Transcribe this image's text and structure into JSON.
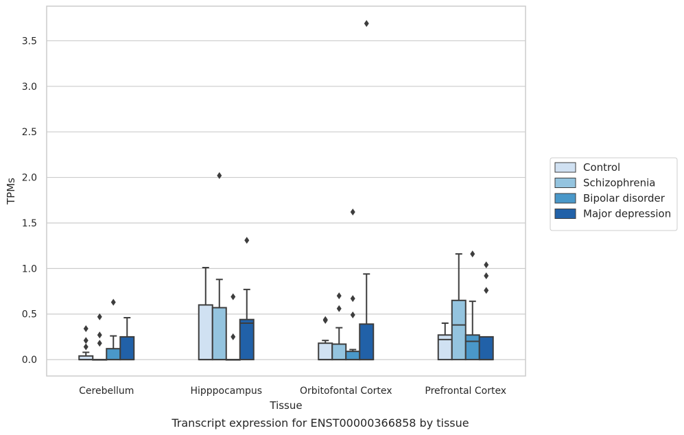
{
  "caption": "Transcript expression for ENST00000366858 by tissue",
  "chart_data": {
    "type": "box",
    "xlabel": "Tissue",
    "ylabel": "TPMs",
    "ylim": [
      -0.18,
      3.88
    ],
    "yticks": [
      0.0,
      0.5,
      1.0,
      1.5,
      2.0,
      2.5,
      3.0,
      3.5
    ],
    "ytick_labels": [
      "0.0",
      "0.5",
      "1.0",
      "1.5",
      "2.0",
      "2.5",
      "3.0",
      "3.5"
    ],
    "grid": "horizontal",
    "legend_position": "right",
    "categories": [
      "Cerebellum",
      "Hipppocampus",
      "Orbitofontal Cortex",
      "Prefrontal Cortex"
    ],
    "series": [
      {
        "name": "Control",
        "color": "#d0e1f2",
        "boxes": [
          {
            "q1": 0.0,
            "median": 0.0,
            "q3": 0.04,
            "whisker_low": 0.0,
            "whisker_high": 0.08,
            "outliers": [
              0.14,
              0.21,
              0.34
            ]
          },
          {
            "q1": 0.0,
            "median": 0.0,
            "q3": 0.6,
            "whisker_low": 0.0,
            "whisker_high": 1.01,
            "outliers": []
          },
          {
            "q1": 0.0,
            "median": 0.0,
            "q3": 0.18,
            "whisker_low": 0.0,
            "whisker_high": 0.21,
            "outliers": [
              0.43,
              0.44
            ]
          },
          {
            "q1": 0.0,
            "median": 0.22,
            "q3": 0.27,
            "whisker_low": 0.0,
            "whisker_high": 0.4,
            "outliers": []
          }
        ]
      },
      {
        "name": "Schizophrenia",
        "color": "#94c4df",
        "boxes": [
          {
            "q1": 0.0,
            "median": 0.0,
            "q3": 0.0,
            "whisker_low": 0.0,
            "whisker_high": 0.0,
            "outliers": [
              0.18,
              0.27,
              0.47
            ]
          },
          {
            "q1": 0.0,
            "median": 0.0,
            "q3": 0.57,
            "whisker_low": 0.0,
            "whisker_high": 0.88,
            "outliers": [
              2.02
            ]
          },
          {
            "q1": 0.0,
            "median": 0.0,
            "q3": 0.17,
            "whisker_low": 0.0,
            "whisker_high": 0.35,
            "outliers": [
              0.56,
              0.7
            ]
          },
          {
            "q1": 0.0,
            "median": 0.38,
            "q3": 0.65,
            "whisker_low": 0.0,
            "whisker_high": 1.16,
            "outliers": []
          }
        ]
      },
      {
        "name": "Bipolar disorder",
        "color": "#4a98c9",
        "boxes": [
          {
            "q1": 0.0,
            "median": 0.0,
            "q3": 0.12,
            "whisker_low": 0.0,
            "whisker_high": 0.26,
            "outliers": [
              0.63
            ]
          },
          {
            "q1": 0.0,
            "median": 0.0,
            "q3": 0.0,
            "whisker_low": 0.0,
            "whisker_high": 0.0,
            "outliers": [
              0.25,
              0.69
            ]
          },
          {
            "q1": 0.0,
            "median": 0.0,
            "q3": 0.09,
            "whisker_low": 0.0,
            "whisker_high": 0.11,
            "outliers": [
              0.49,
              0.67,
              1.62
            ]
          },
          {
            "q1": 0.0,
            "median": 0.2,
            "q3": 0.27,
            "whisker_low": 0.0,
            "whisker_high": 0.64,
            "outliers": [
              1.16
            ]
          }
        ]
      },
      {
        "name": "Major depression",
        "color": "#2161a8",
        "boxes": [
          {
            "q1": 0.0,
            "median": 0.0,
            "q3": 0.25,
            "whisker_low": 0.0,
            "whisker_high": 0.46,
            "outliers": []
          },
          {
            "q1": 0.0,
            "median": 0.4,
            "q3": 0.44,
            "whisker_low": 0.0,
            "whisker_high": 0.77,
            "outliers": [
              1.31
            ]
          },
          {
            "q1": 0.0,
            "median": 0.0,
            "q3": 0.39,
            "whisker_low": 0.0,
            "whisker_high": 0.94,
            "outliers": [
              3.69
            ]
          },
          {
            "q1": 0.0,
            "median": 0.0,
            "q3": 0.25,
            "whisker_low": 0.0,
            "whisker_high": 0.25,
            "outliers": [
              0.76,
              0.92,
              1.04
            ]
          }
        ]
      }
    ]
  }
}
